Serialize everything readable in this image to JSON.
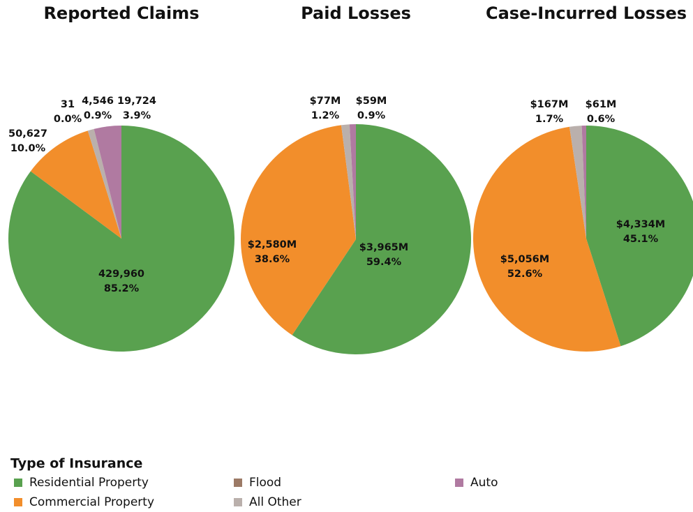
{
  "chart_data": [
    {
      "type": "pie",
      "title": "Reported Claims",
      "categories": [
        "Residential Property",
        "Commercial Property",
        "Flood",
        "All Other",
        "Auto"
      ],
      "colors": [
        "#59a14f",
        "#f28e2b",
        "#9c7a66",
        "#bab0ac",
        "#b07aa1"
      ],
      "values": [
        429960,
        50627,
        31,
        4546,
        19724
      ],
      "value_labels": [
        "429,960",
        "50,627",
        "31",
        "4,546",
        "19,724"
      ],
      "shares": [
        85.2,
        10.0,
        0.0,
        0.9,
        3.9
      ],
      "share_labels": [
        "85.2%",
        "10.0%",
        "0.0%",
        "0.9%",
        "3.9%"
      ]
    },
    {
      "type": "pie",
      "title": "Paid Losses",
      "categories": [
        "Residential Property",
        "Commercial Property",
        "Flood",
        "All Other",
        "Auto"
      ],
      "colors": [
        "#59a14f",
        "#f28e2b",
        "#9c7a66",
        "#bab0ac",
        "#b07aa1"
      ],
      "values": [
        3965,
        2580,
        null,
        77,
        59
      ],
      "value_labels": [
        "$3,965M",
        "$2,580M",
        null,
        "$77M",
        "$59M"
      ],
      "shares": [
        59.4,
        38.6,
        null,
        1.2,
        0.9
      ],
      "share_labels": [
        "59.4%",
        "38.6%",
        null,
        "1.2%",
        "0.9%"
      ]
    },
    {
      "type": "pie",
      "title": "Case-Incurred Losses",
      "categories": [
        "Residential Property",
        "Commercial Property",
        "Flood",
        "All Other",
        "Auto"
      ],
      "colors": [
        "#59a14f",
        "#f28e2b",
        "#9c7a66",
        "#bab0ac",
        "#b07aa1"
      ],
      "values": [
        4334,
        5056,
        null,
        167,
        61
      ],
      "value_labels": [
        "$4,334M",
        "$5,056M",
        null,
        "$167M",
        "$61M"
      ],
      "shares": [
        45.1,
        52.6,
        null,
        1.7,
        0.6
      ],
      "share_labels": [
        "45.1%",
        "52.6%",
        null,
        "1.7%",
        "0.6%"
      ]
    }
  ],
  "legend_title": "Type of Insurance"
}
